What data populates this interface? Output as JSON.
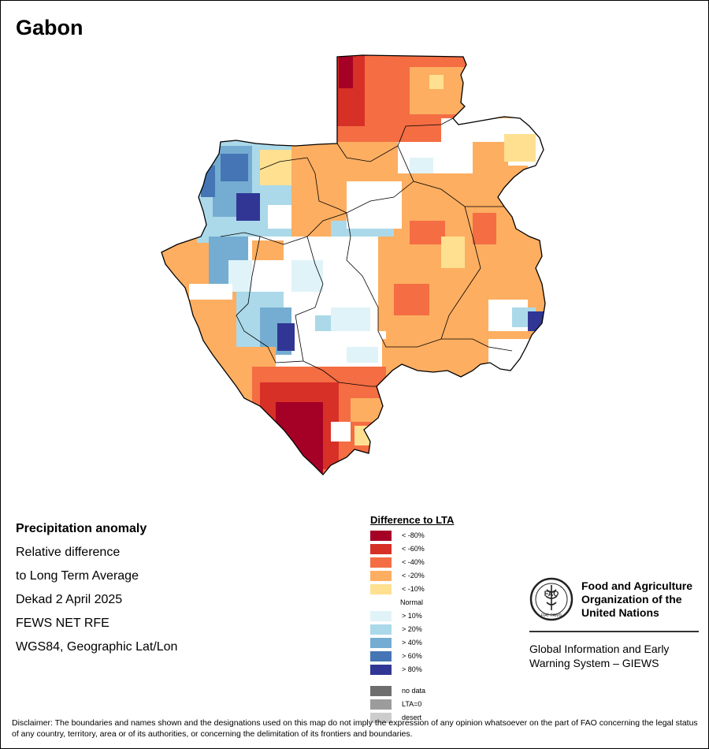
{
  "title": "Gabon",
  "info": {
    "heading": "Precipitation anomaly",
    "line1": "Relative difference",
    "line2": "to Long Term Average",
    "line3": "Dekad 2 April 2025",
    "line4": "FEWS NET RFE",
    "line5": "WGS84, Geographic Lat/Lon"
  },
  "legend": {
    "title": "Difference to LTA",
    "items": [
      {
        "label": "< -80%",
        "color": "#a50026"
      },
      {
        "label": "< -60%",
        "color": "#d73027"
      },
      {
        "label": "< -40%",
        "color": "#f46d43"
      },
      {
        "label": "< -20%",
        "color": "#fdae61"
      },
      {
        "label": "< -10%",
        "color": "#fee090"
      },
      {
        "label": "Normal",
        "color": "#ffffff"
      },
      {
        "label": "> 10%",
        "color": "#e0f3f8"
      },
      {
        "label": "> 20%",
        "color": "#abd9e9"
      },
      {
        "label": "> 40%",
        "color": "#74add1"
      },
      {
        "label": "> 60%",
        "color": "#4575b4"
      },
      {
        "label": "> 80%",
        "color": "#313695"
      }
    ],
    "extra": [
      {
        "label": "no data",
        "color": "#6e6e6e"
      },
      {
        "label": "LTA=0",
        "color": "#9c9c9c"
      },
      {
        "label": "desert",
        "color": "#cccccc"
      }
    ]
  },
  "fao": {
    "name_line1": "Food and Agriculture",
    "name_line2": "Organization of the",
    "name_line3": "United Nations",
    "system_line1": "Global Information and Early",
    "system_line2": "Warning System – GIEWS",
    "emblem_text": "FAO",
    "emblem_motto": "FIAT PANIS"
  },
  "disclaimer": "Disclaimer: The boundaries and names shown and the designations used on this map do not imply the expression of any opinion whatsoever on the part of FAO concerning the legal status of any country, territory, area or of its authorities, or concerning the delimitation of its frontiers and boundaries."
}
